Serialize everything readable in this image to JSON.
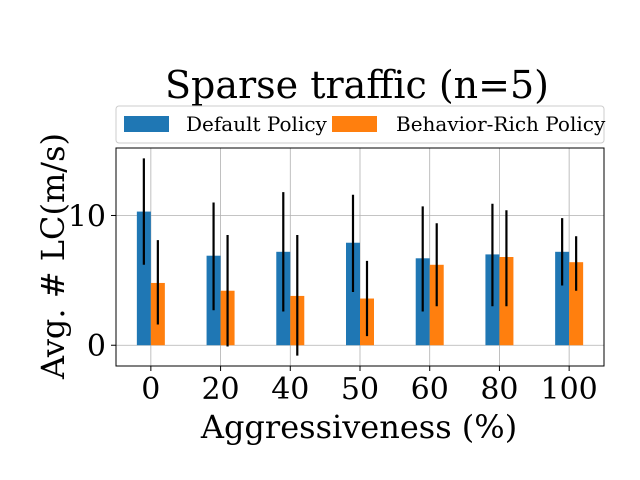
{
  "chart_data": {
    "type": "bar",
    "title": "Sparse traffic (n=5)",
    "xlabel": "Aggressiveness (%)",
    "ylabel": "Avg. # LC(m/s)",
    "categories": [
      "0",
      "20",
      "40",
      "50",
      "60",
      "80",
      "100"
    ],
    "ylim": [
      -1.6,
      15.2
    ],
    "yticks": [
      0,
      10
    ],
    "grid": true,
    "legend": {
      "placement": "top",
      "columns": 2
    },
    "series": [
      {
        "name": "Default Policy",
        "color": "#1f77b4",
        "values": [
          10.3,
          6.9,
          7.2,
          7.9,
          6.7,
          7.0,
          7.2
        ],
        "error": [
          [
            6.2,
            14.4
          ],
          [
            2.7,
            11.0
          ],
          [
            2.6,
            11.8
          ],
          [
            4.1,
            11.6
          ],
          [
            2.6,
            10.7
          ],
          [
            3.0,
            10.9
          ],
          [
            4.6,
            9.8
          ]
        ]
      },
      {
        "name": "Behavior-Rich Policy",
        "color": "#ff7f0e",
        "values": [
          4.8,
          4.2,
          3.8,
          3.6,
          6.2,
          6.8,
          6.4
        ],
        "error": [
          [
            1.6,
            8.1
          ],
          [
            -0.1,
            8.5
          ],
          [
            -0.8,
            8.5
          ],
          [
            0.7,
            6.5
          ],
          [
            3.0,
            9.4
          ],
          [
            3.0,
            10.4
          ],
          [
            4.2,
            8.4
          ]
        ]
      }
    ]
  }
}
